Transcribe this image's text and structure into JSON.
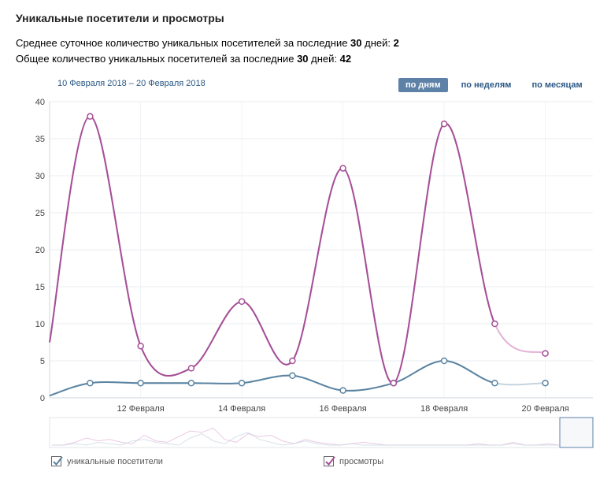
{
  "header": {
    "title": "Уникальные посетители и просмотры",
    "stat1_prefix": "Среднее суточное количество уникальных посетителей за последние ",
    "stat1_days": "30",
    "stat1_suffix": " дней: ",
    "stat1_value": "2",
    "stat2_prefix": "Общее количество уникальных посетителей за последние ",
    "stat2_days": "30",
    "stat2_suffix": " дней: ",
    "stat2_value": "42"
  },
  "range": "10 Февраля 2018 – 20 Февраля 2018",
  "tabs": [
    {
      "label": "по дням",
      "active": true
    },
    {
      "label": "по неделям",
      "active": false
    },
    {
      "label": "по месяцам",
      "active": false
    }
  ],
  "legend": {
    "visitors": "уникальные посетители",
    "views": "просмотры"
  },
  "colors": {
    "visitors": "#5b84a2",
    "views": "#a54f97",
    "views_faded": "#e3b3d6",
    "visitors_faded": "#c5d4df"
  },
  "chart_data": {
    "type": "line",
    "ylim": [
      0,
      40
    ],
    "yticks": [
      0,
      5,
      10,
      15,
      20,
      25,
      30,
      35,
      40
    ],
    "xlim": [
      10.2,
      20.94
    ],
    "xticks": [
      {
        "x": 12,
        "label": "12 Февраля"
      },
      {
        "x": 14,
        "label": "14 Февраля"
      },
      {
        "x": 16,
        "label": "16 Февраля"
      },
      {
        "x": 18,
        "label": "18 Февраля"
      },
      {
        "x": 20,
        "label": "20 Февраля"
      }
    ],
    "series": [
      {
        "name": "уникальные посетители",
        "x": [
          10.2,
          11,
          12,
          13,
          14,
          15,
          16,
          17,
          18,
          19,
          20
        ],
        "values": [
          0.3,
          2,
          2,
          2,
          2,
          3,
          1,
          2,
          5,
          2,
          2
        ],
        "markers_from": 1,
        "faded_from": 9
      },
      {
        "name": "просмотры",
        "x": [
          10.2,
          11,
          12,
          13,
          14,
          15,
          16,
          17,
          18,
          19,
          20
        ],
        "values": [
          7.5,
          38,
          7,
          4,
          13,
          5,
          31,
          2,
          37,
          10,
          6
        ],
        "markers_from": 1,
        "faded_from": 9
      }
    ],
    "grid": true
  }
}
